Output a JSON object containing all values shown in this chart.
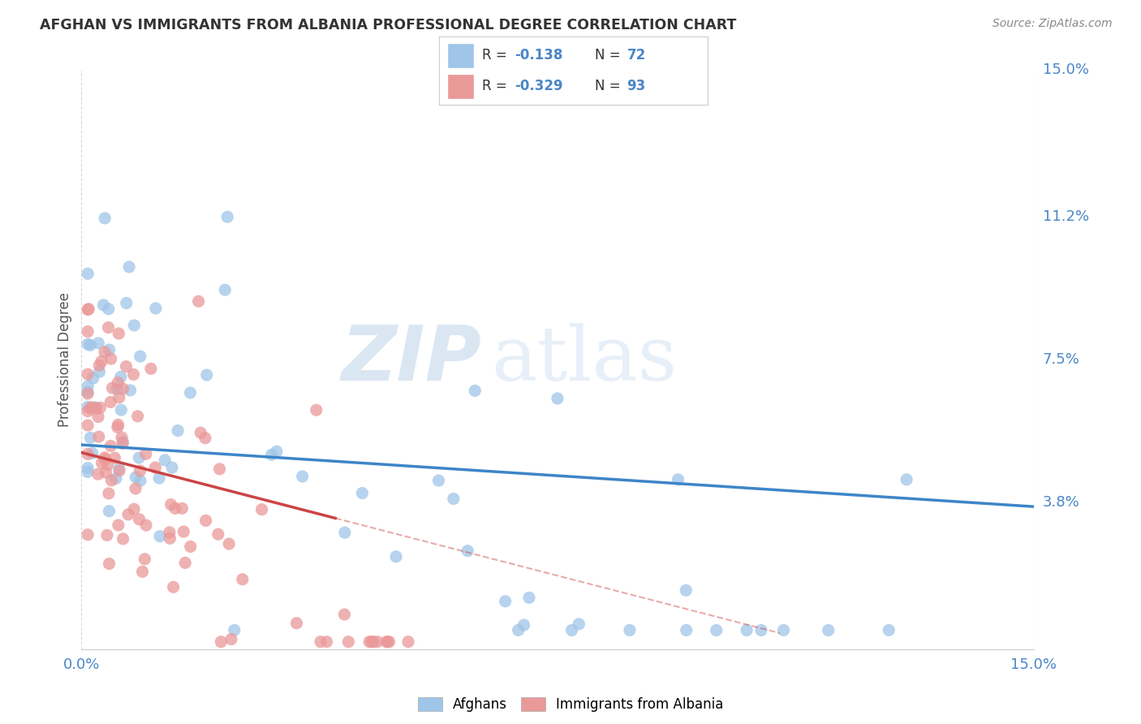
{
  "title": "AFGHAN VS IMMIGRANTS FROM ALBANIA PROFESSIONAL DEGREE CORRELATION CHART",
  "source": "Source: ZipAtlas.com",
  "ylabel": "Professional Degree",
  "xlim": [
    0.0,
    0.15
  ],
  "ylim": [
    0.0,
    0.15
  ],
  "ytick_labels": [
    "3.8%",
    "7.5%",
    "11.2%",
    "15.0%"
  ],
  "ytick_values": [
    0.038,
    0.075,
    0.112,
    0.15
  ],
  "blue_color": "#9fc5e8",
  "pink_color": "#ea9999",
  "blue_line_color": "#3d85c8",
  "pink_line_color": "#cc4444",
  "watermark_zip": "ZIP",
  "watermark_atlas": "atlas",
  "legend_label1": "Afghans",
  "legend_label2": "Immigrants from Albania",
  "title_color": "#333333",
  "axis_color": "#4a86c8",
  "grid_color": "#cccccc",
  "background_color": "#ffffff",
  "blue_r": "-0.138",
  "blue_n": "72",
  "pink_r": "-0.329",
  "pink_n": "93"
}
